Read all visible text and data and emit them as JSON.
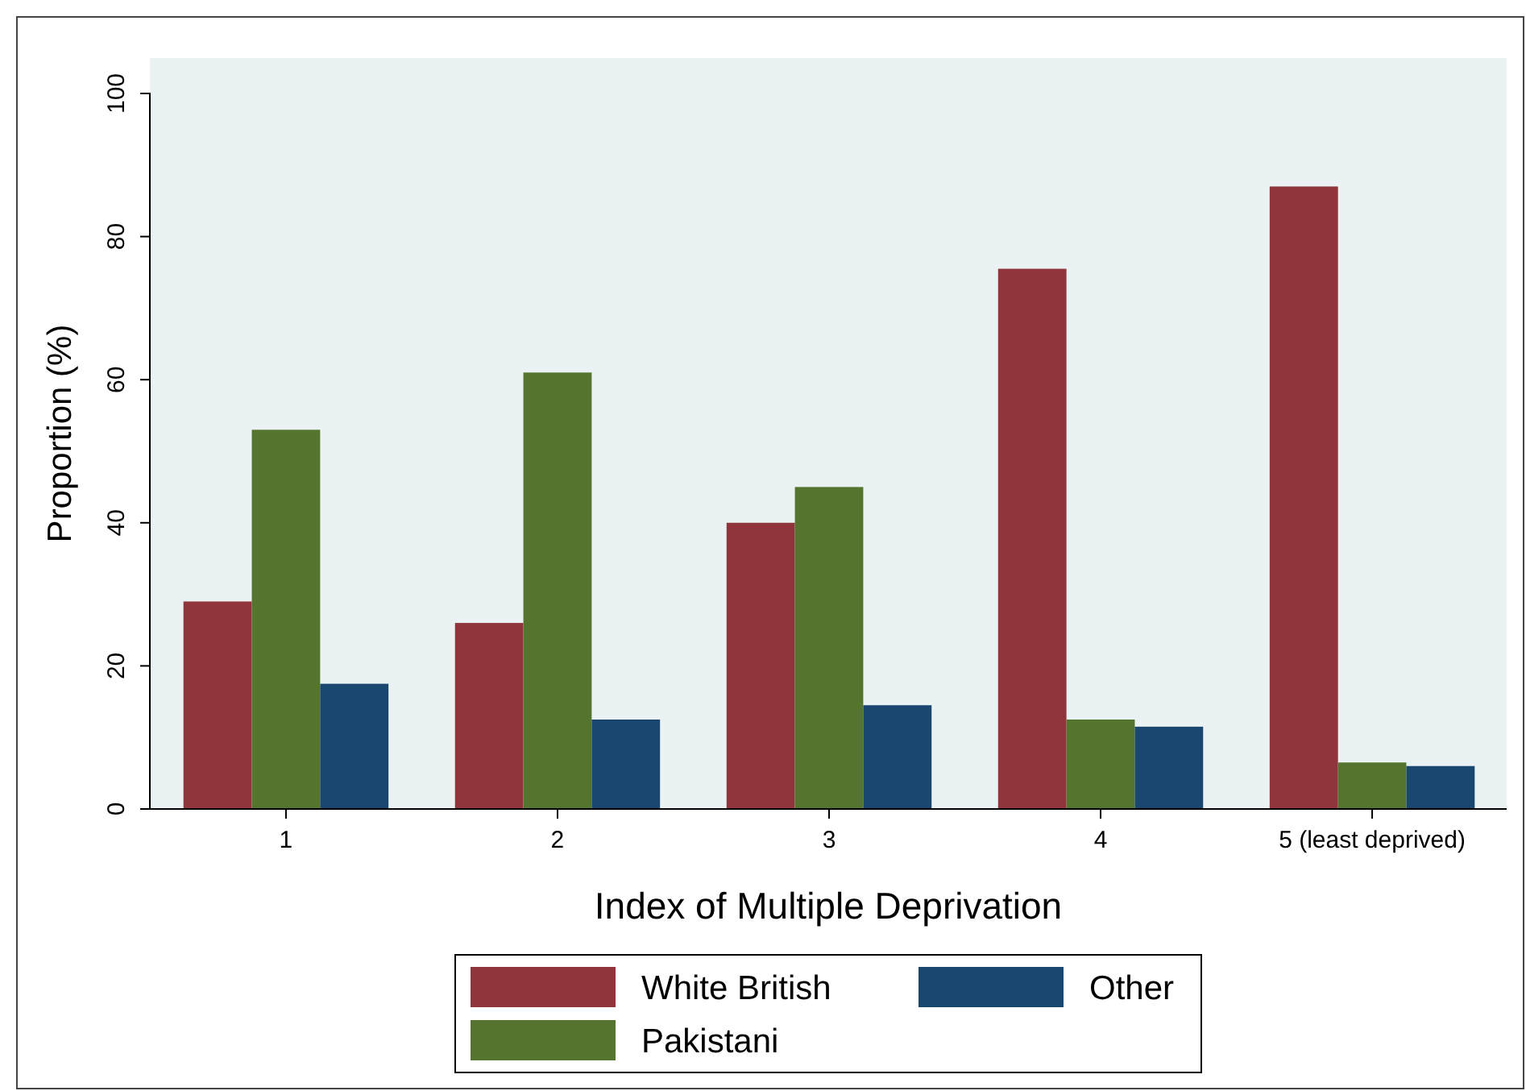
{
  "chart_data": {
    "type": "bar",
    "xlabel": "Index of Multiple Deprivation",
    "ylabel": "Proportion (%)",
    "categories": [
      "1",
      "2",
      "3",
      "4",
      "5 (least deprived)"
    ],
    "series": [
      {
        "name": "White British",
        "color": "#90353b",
        "values": [
          29,
          26,
          40,
          75.5,
          87
        ]
      },
      {
        "name": "Pakistani",
        "color": "#55752f",
        "values": [
          53,
          61,
          45,
          12.5,
          6.5
        ]
      },
      {
        "name": "Other",
        "color": "#1a476f",
        "values": [
          17.5,
          12.5,
          14.5,
          11.5,
          6
        ]
      }
    ],
    "ylim": [
      0,
      100
    ],
    "yticks": [
      0,
      20,
      40,
      60,
      80,
      100
    ],
    "grid": false,
    "legend": "bottom"
  }
}
